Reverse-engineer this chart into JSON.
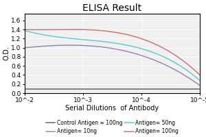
{
  "title": "ELISA Result",
  "ylabel": "O.D.",
  "xlabel": "Serial Dilutions  of Antibody",
  "x_values": [
    -2,
    -3,
    -4,
    -5
  ],
  "lines": [
    {
      "label": "Control Antigen = 100ng",
      "color": "#666666",
      "y": [
        0.09,
        0.09,
        0.09,
        0.09
      ]
    },
    {
      "label": "Antigen= 10ng",
      "color": "#9988bb",
      "y": [
        1.0,
        1.05,
        0.83,
        0.17
      ]
    },
    {
      "label": "Antigen= 50ng",
      "color": "#66cccc",
      "y": [
        1.38,
        1.18,
        0.98,
        0.28
      ]
    },
    {
      "label": "Antigen= 100ng",
      "color": "#cc7777",
      "y": [
        1.4,
        1.4,
        1.2,
        0.4
      ]
    }
  ],
  "ylim": [
    0,
    1.75
  ],
  "yticks": [
    0,
    0.2,
    0.4,
    0.6,
    0.8,
    1.0,
    1.2,
    1.4,
    1.6
  ],
  "xtick_labels": [
    "10^-2",
    "10^-3",
    "10^-4",
    "10^-5"
  ],
  "background_color": "#f0f0f0",
  "title_fontsize": 10,
  "axis_label_fontsize": 7,
  "tick_fontsize": 6.5,
  "legend_fontsize": 5.5
}
